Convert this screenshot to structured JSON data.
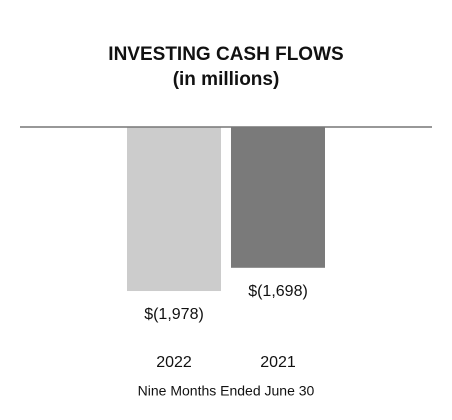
{
  "chart_data": {
    "type": "bar",
    "title": "INVESTING CASH FLOWS",
    "subtitle": "(in millions)",
    "categories": [
      "2022",
      "2021"
    ],
    "values": [
      -1978,
      -1698
    ],
    "value_labels": [
      "$(1,978)",
      "$(1,698)"
    ],
    "colors": [
      "#cccccc",
      "#7a7a7a"
    ],
    "x_label": "Nine Months Ended June 30",
    "ylim": [
      -2400,
      0
    ]
  }
}
